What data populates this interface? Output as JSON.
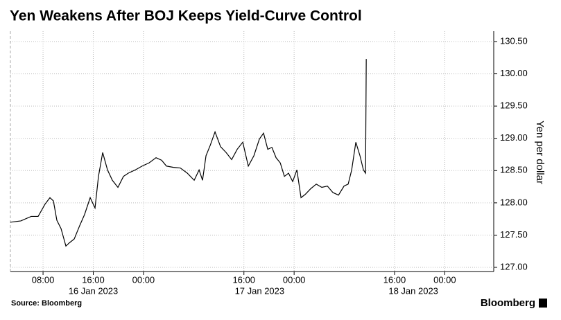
{
  "chart_data": {
    "type": "line",
    "title": "Yen Weakens After BOJ Keeps Yield-Curve Control",
    "y_label": "Yen per dollar",
    "source": "Source: Bloomberg",
    "brand": "Bloomberg",
    "color": "#000000",
    "grid": true,
    "xlim": [
      2.8,
      79.8
    ],
    "ylim": [
      127.0,
      130.5
    ],
    "yticks": [
      {
        "value": 127.0,
        "label": "127.00"
      },
      {
        "value": 127.5,
        "label": "127.50"
      },
      {
        "value": 128.0,
        "label": "128.00"
      },
      {
        "value": 128.5,
        "label": "128.50"
      },
      {
        "value": 129.0,
        "label": "129.00"
      },
      {
        "value": 129.5,
        "label": "129.50"
      },
      {
        "value": 130.0,
        "label": "130.00"
      },
      {
        "value": 130.5,
        "label": "130.50"
      }
    ],
    "xticks": [
      {
        "value": 8,
        "label": "08:00"
      },
      {
        "value": 16,
        "label": "16:00"
      },
      {
        "value": 24,
        "label": "00:00"
      },
      {
        "value": 40,
        "label": "16:00"
      },
      {
        "value": 48,
        "label": "00:00"
      },
      {
        "value": 64,
        "label": "16:00"
      },
      {
        "value": 72,
        "label": "00:00"
      }
    ],
    "date_labels": [
      {
        "value": 16,
        "label": "16 Jan 2023"
      },
      {
        "value": 42.5,
        "label": "17 Jan 2023"
      },
      {
        "value": 67,
        "label": "18 Jan 2023"
      }
    ],
    "session_breks_unused": null,
    "x": [
      2.8,
      4.46,
      6.11,
      7.22,
      8.32,
      9.1,
      9.65,
      10.2,
      10.87,
      11.64,
      12.19,
      12.97,
      13.85,
      14.62,
      15.51,
      16.28,
      16.83,
      17.5,
      18.27,
      19.04,
      19.93,
      20.81,
      21.58,
      22.69,
      23.79,
      24.9,
      26.0,
      26.89,
      27.66,
      28.77,
      29.87,
      30.98,
      32.08,
      32.86,
      33.41,
      33.96,
      34.63,
      35.4,
      36.28,
      37.17,
      38.05,
      38.93,
      39.82,
      40.7,
      41.59,
      42.47,
      43.13,
      43.8,
      44.46,
      45.12,
      45.79,
      46.45,
      47.11,
      47.77,
      48.44,
      49.1,
      49.76,
      50.65,
      51.53,
      52.41,
      53.3,
      54.18,
      55.07,
      55.95,
      56.61,
      57.17,
      57.83,
      58.49,
      59.04,
      59.38,
      59.49
    ],
    "values": [
      127.7,
      127.72,
      127.79,
      127.79,
      127.98,
      128.08,
      128.03,
      127.73,
      127.6,
      127.33,
      127.38,
      127.44,
      127.65,
      127.82,
      128.08,
      127.92,
      128.41,
      128.78,
      128.51,
      128.35,
      128.24,
      128.41,
      128.46,
      128.51,
      128.57,
      128.62,
      128.7,
      128.66,
      128.57,
      128.55,
      128.54,
      128.46,
      128.35,
      128.51,
      128.35,
      128.73,
      128.89,
      129.1,
      128.87,
      128.78,
      128.67,
      128.83,
      128.94,
      128.57,
      128.73,
      128.99,
      129.08,
      128.83,
      128.86,
      128.7,
      128.62,
      128.41,
      128.46,
      128.33,
      128.51,
      128.08,
      128.13,
      128.22,
      128.29,
      128.24,
      128.26,
      128.16,
      128.12,
      128.26,
      128.29,
      128.51,
      128.94,
      128.73,
      128.51,
      128.46,
      130.23
    ]
  }
}
